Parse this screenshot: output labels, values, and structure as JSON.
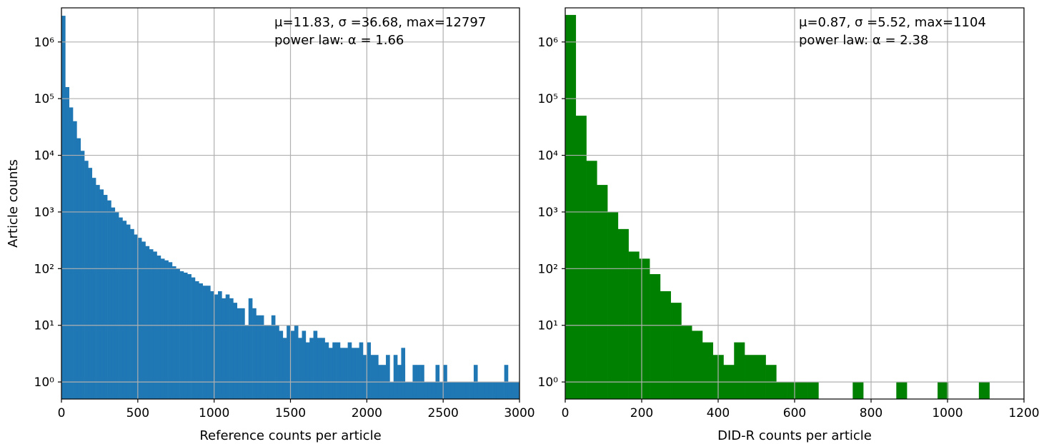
{
  "chart_data": [
    {
      "type": "bar",
      "ylabel": "Article counts",
      "xlabel": "Reference counts per article",
      "yscale": "log",
      "grid": true,
      "color": "#1f77b4",
      "xlim": [
        0,
        3000
      ],
      "ylim": [
        0.5,
        4000000
      ],
      "xticks": [
        "0",
        "500",
        "1000",
        "1500",
        "2000",
        "2500",
        "3000"
      ],
      "xtick_values": [
        0,
        500,
        1000,
        1500,
        2000,
        2500,
        3000
      ],
      "yticks": [
        "10⁰",
        "10¹",
        "10²",
        "10³",
        "10⁴",
        "10⁵",
        "10⁶"
      ],
      "ytick_values": [
        1,
        10,
        100,
        1000,
        10000,
        100000,
        1000000
      ],
      "annotation": [
        "μ=11.83, σ =36.68, max=12797",
        "power law: α = 1.66"
      ],
      "bin_width": 25,
      "x_start": 0,
      "values": [
        2900000,
        160000,
        70000,
        40000,
        20000,
        12000,
        8000,
        6000,
        4000,
        3000,
        2500,
        2000,
        1600,
        1200,
        1000,
        800,
        700,
        600,
        500,
        400,
        350,
        300,
        250,
        220,
        200,
        170,
        150,
        140,
        130,
        110,
        100,
        90,
        85,
        80,
        70,
        60,
        55,
        50,
        50,
        40,
        35,
        40,
        30,
        35,
        30,
        25,
        20,
        20,
        10,
        30,
        20,
        15,
        15,
        10,
        10,
        15,
        10,
        8,
        6,
        10,
        8,
        10,
        6,
        8,
        5,
        6,
        8,
        6,
        6,
        5,
        4,
        5,
        5,
        4,
        4,
        5,
        4,
        4,
        5,
        3,
        5,
        3,
        3,
        2,
        2,
        3,
        1,
        3,
        2,
        4,
        1,
        1,
        2,
        2,
        2,
        1,
        1,
        1,
        2,
        1,
        1,
        1,
        1,
        1,
        1,
        1,
        1,
        1,
        2,
        1,
        1,
        1,
        1,
        1,
        1,
        1,
        2,
        1,
        1,
        1,
        0,
        0,
        0,
        0,
        0,
        0,
        0,
        0,
        0,
        0,
        0,
        0,
        0,
        0,
        0,
        0,
        0,
        0,
        0,
        0,
        0,
        0,
        0,
        0,
        0,
        0,
        0,
        0,
        0,
        0,
        0,
        0,
        0,
        0,
        0,
        0,
        0,
        0,
        0,
        0,
        0,
        0,
        0,
        0,
        0,
        0,
        0,
        0,
        0,
        0,
        0
      ],
      "extra_bars": [
        [
          2175,
          1
        ],
        [
          2200,
          1
        ],
        [
          2225,
          2
        ],
        [
          2250,
          1
        ],
        [
          2350,
          1
        ],
        [
          2400,
          1
        ],
        [
          2425,
          1
        ],
        [
          2500,
          2
        ],
        [
          2550,
          1
        ],
        [
          2600,
          1
        ],
        [
          2650,
          1
        ],
        [
          2750,
          1
        ],
        [
          2775,
          1
        ],
        [
          2975,
          1
        ]
      ]
    },
    {
      "type": "bar",
      "xlabel": "DID-R counts per article",
      "yscale": "log",
      "grid": true,
      "color": "#008000",
      "xlim": [
        0,
        1200
      ],
      "ylim": [
        0.5,
        4000000
      ],
      "xticks": [
        "0",
        "200",
        "400",
        "600",
        "800",
        "1000",
        "1200"
      ],
      "xtick_values": [
        0,
        200,
        400,
        600,
        800,
        1000,
        1200
      ],
      "yticks": [
        "10⁰",
        "10¹",
        "10²",
        "10³",
        "10⁴",
        "10⁵",
        "10⁶"
      ],
      "ytick_values": [
        1,
        10,
        100,
        1000,
        10000,
        100000,
        1000000
      ],
      "annotation": [
        "μ=0.87, σ =5.52, max=1104",
        "power law: α = 2.38"
      ],
      "bin_width": 27.6,
      "x_start": 0,
      "values": [
        3000000,
        50000,
        8000,
        3000,
        1000,
        500,
        200,
        150,
        80,
        40,
        25,
        10,
        8,
        5,
        3,
        2,
        5,
        3,
        3,
        2,
        1,
        1,
        1,
        1,
        0,
        0,
        0,
        0,
        0,
        0,
        0,
        0,
        0,
        0,
        0,
        0,
        0,
        0,
        0,
        0
      ],
      "extra_bars": [
        [
          752,
          1
        ],
        [
          866,
          1
        ],
        [
          974,
          1
        ],
        [
          1082,
          1
        ]
      ]
    }
  ]
}
